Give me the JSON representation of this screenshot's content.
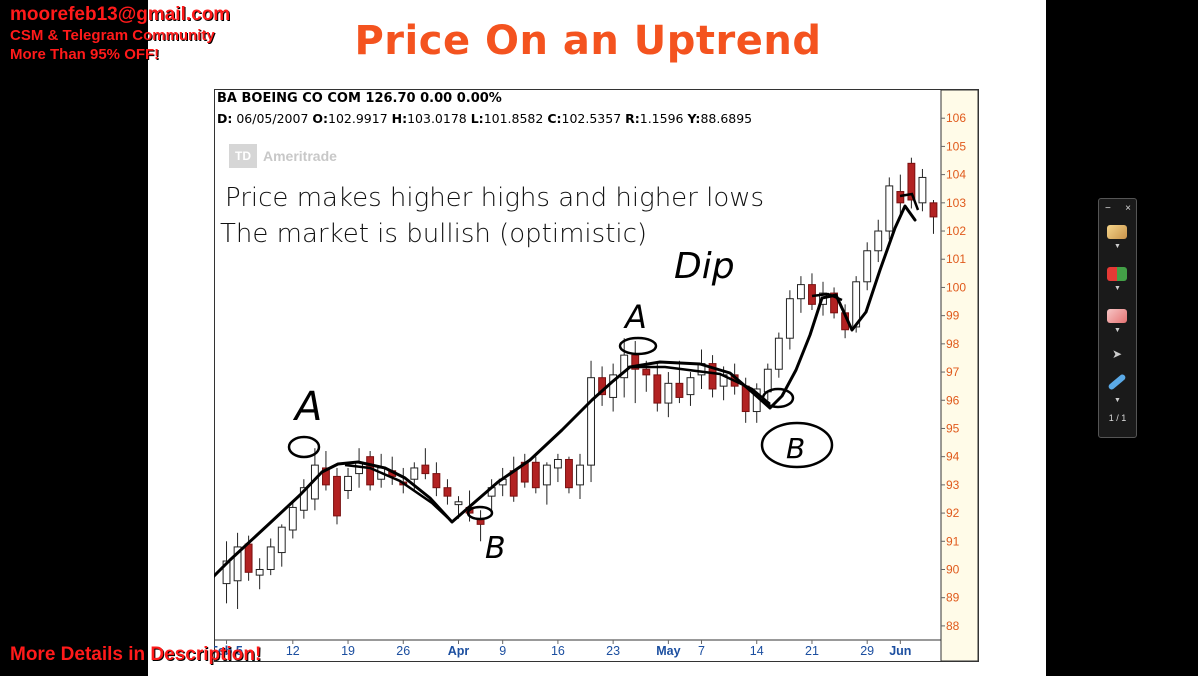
{
  "overlay": {
    "email": "moorefeb13@gmail.com",
    "line1": "CSM & Telegram Community",
    "line2": "More Than 95% OFF!",
    "bottom": "More Details in Description!"
  },
  "slide": {
    "title": "Price On an Uptrend",
    "note1": "Price makes higher highs and higher lows",
    "note2": "The market is bullish (optimistic)"
  },
  "chart_header": {
    "line1": "BA BOEING CO COM   126.70  0.00  0.00%",
    "date_label": "D:",
    "date": " 06/05/2007 ",
    "open_label": "O:",
    "open": "102.9917 ",
    "high_label": "H:",
    "high": "103.0178 ",
    "low_label": "L:",
    "low": "101.8582 ",
    "close_label": "C:",
    "close": "102.5357 ",
    "r_label": "R:",
    "r": "1.1596 ",
    "y_label": "Y:",
    "y": "88.6895"
  },
  "logo": {
    "box": "TD",
    "name": "Ameritrade"
  },
  "annotations": {
    "a1": "A",
    "b1": "B",
    "a2": "A",
    "b2": "B",
    "dip": "Dip"
  },
  "toolbar": {
    "page": "1 / 1",
    "close": "×",
    "minimize": "−"
  },
  "colors": {
    "title": "#f4531f",
    "up_candle": "#ffffff",
    "down_candle": "#b22222",
    "axis_label": "#e05a1c",
    "axis_bg": "#fffbe8"
  },
  "chart_data": {
    "type": "candlestick",
    "title": "BA BOEING CO COM",
    "ylim": [
      87.5,
      107
    ],
    "y_ticks": [
      88,
      89,
      90,
      91,
      92,
      93,
      94,
      95,
      96,
      97,
      98,
      99,
      100,
      101,
      102,
      103,
      104,
      105,
      106
    ],
    "x_ticks": [
      {
        "label": "Feb 5",
        "i": 0
      },
      {
        "label": "12",
        "i": 6
      },
      {
        "label": "19",
        "i": 11
      },
      {
        "label": "26",
        "i": 16
      },
      {
        "label": "Apr",
        "i": 21
      },
      {
        "label": "9",
        "i": 25
      },
      {
        "label": "16",
        "i": 30
      },
      {
        "label": "23",
        "i": 35
      },
      {
        "label": "May",
        "i": 40
      },
      {
        "label": "7",
        "i": 43
      },
      {
        "label": "14",
        "i": 48
      },
      {
        "label": "21",
        "i": 53
      },
      {
        "label": "29",
        "i": 58
      },
      {
        "label": "Jun",
        "i": 61
      }
    ],
    "candles": [
      {
        "o": 89.5,
        "h": 91.0,
        "l": 88.8,
        "c": 90.3
      },
      {
        "o": 89.6,
        "h": 91.3,
        "l": 88.6,
        "c": 90.8
      },
      {
        "o": 90.9,
        "h": 91.2,
        "l": 89.6,
        "c": 89.9
      },
      {
        "o": 89.8,
        "h": 90.4,
        "l": 89.3,
        "c": 90.0
      },
      {
        "o": 90.0,
        "h": 91.1,
        "l": 89.8,
        "c": 90.8
      },
      {
        "o": 90.6,
        "h": 91.6,
        "l": 90.1,
        "c": 91.5
      },
      {
        "o": 91.4,
        "h": 92.4,
        "l": 91.1,
        "c": 92.2
      },
      {
        "o": 92.1,
        "h": 93.2,
        "l": 91.8,
        "c": 92.9
      },
      {
        "o": 92.5,
        "h": 94.3,
        "l": 92.1,
        "c": 93.7
      },
      {
        "o": 93.6,
        "h": 94.2,
        "l": 92.8,
        "c": 93.0
      },
      {
        "o": 93.3,
        "h": 93.6,
        "l": 91.6,
        "c": 91.9
      },
      {
        "o": 92.8,
        "h": 93.6,
        "l": 92.5,
        "c": 93.3
      },
      {
        "o": 93.4,
        "h": 94.3,
        "l": 92.9,
        "c": 93.8
      },
      {
        "o": 94.0,
        "h": 94.2,
        "l": 92.8,
        "c": 93.0
      },
      {
        "o": 93.2,
        "h": 94.1,
        "l": 92.9,
        "c": 93.6
      },
      {
        "o": 93.5,
        "h": 94.0,
        "l": 93.0,
        "c": 93.3
      },
      {
        "o": 93.1,
        "h": 93.6,
        "l": 92.7,
        "c": 93.0
      },
      {
        "o": 93.2,
        "h": 93.8,
        "l": 92.8,
        "c": 93.6
      },
      {
        "o": 93.7,
        "h": 94.3,
        "l": 93.2,
        "c": 93.4
      },
      {
        "o": 93.4,
        "h": 93.8,
        "l": 92.6,
        "c": 92.9
      },
      {
        "o": 92.9,
        "h": 93.2,
        "l": 92.3,
        "c": 92.6
      },
      {
        "o": 92.3,
        "h": 92.6,
        "l": 91.8,
        "c": 92.4
      },
      {
        "o": 92.2,
        "h": 92.8,
        "l": 91.7,
        "c": 92.0
      },
      {
        "o": 91.8,
        "h": 92.1,
        "l": 91.0,
        "c": 91.6
      },
      {
        "o": 92.6,
        "h": 93.2,
        "l": 92.1,
        "c": 92.9
      },
      {
        "o": 93.0,
        "h": 93.6,
        "l": 92.6,
        "c": 93.2
      },
      {
        "o": 93.5,
        "h": 94.0,
        "l": 92.4,
        "c": 92.6
      },
      {
        "o": 93.8,
        "h": 94.1,
        "l": 92.9,
        "c": 93.1
      },
      {
        "o": 93.8,
        "h": 94.0,
        "l": 92.7,
        "c": 92.9
      },
      {
        "o": 93.0,
        "h": 93.8,
        "l": 92.3,
        "c": 93.7
      },
      {
        "o": 93.6,
        "h": 94.1,
        "l": 93.1,
        "c": 93.9
      },
      {
        "o": 93.9,
        "h": 94.0,
        "l": 92.7,
        "c": 92.9
      },
      {
        "o": 93.0,
        "h": 94.1,
        "l": 92.5,
        "c": 93.7
      },
      {
        "o": 93.7,
        "h": 97.4,
        "l": 93.1,
        "c": 96.8
      },
      {
        "o": 96.8,
        "h": 97.2,
        "l": 95.8,
        "c": 96.2
      },
      {
        "o": 96.1,
        "h": 97.3,
        "l": 95.6,
        "c": 96.9
      },
      {
        "o": 96.8,
        "h": 98.2,
        "l": 96.1,
        "c": 97.6
      },
      {
        "o": 97.6,
        "h": 98.1,
        "l": 95.9,
        "c": 97.1
      },
      {
        "o": 97.1,
        "h": 97.4,
        "l": 96.3,
        "c": 96.9
      },
      {
        "o": 96.9,
        "h": 97.3,
        "l": 95.6,
        "c": 95.9
      },
      {
        "o": 95.9,
        "h": 97.0,
        "l": 95.4,
        "c": 96.6
      },
      {
        "o": 96.6,
        "h": 97.4,
        "l": 95.9,
        "c": 96.1
      },
      {
        "o": 96.2,
        "h": 97.0,
        "l": 95.8,
        "c": 96.8
      },
      {
        "o": 96.9,
        "h": 97.8,
        "l": 96.4,
        "c": 97.3
      },
      {
        "o": 97.3,
        "h": 97.6,
        "l": 96.1,
        "c": 96.4
      },
      {
        "o": 96.5,
        "h": 97.2,
        "l": 96.0,
        "c": 96.9
      },
      {
        "o": 96.9,
        "h": 97.3,
        "l": 96.2,
        "c": 96.5
      },
      {
        "o": 96.5,
        "h": 96.8,
        "l": 95.2,
        "c": 95.6
      },
      {
        "o": 95.6,
        "h": 96.6,
        "l": 95.2,
        "c": 96.4
      },
      {
        "o": 96.3,
        "h": 97.3,
        "l": 96.0,
        "c": 97.1
      },
      {
        "o": 97.1,
        "h": 98.4,
        "l": 96.8,
        "c": 98.2
      },
      {
        "o": 98.2,
        "h": 99.9,
        "l": 97.8,
        "c": 99.6
      },
      {
        "o": 99.6,
        "h": 100.4,
        "l": 99.1,
        "c": 100.1
      },
      {
        "o": 100.1,
        "h": 100.5,
        "l": 99.2,
        "c": 99.4
      },
      {
        "o": 99.4,
        "h": 100.2,
        "l": 99.0,
        "c": 99.8
      },
      {
        "o": 99.8,
        "h": 100.0,
        "l": 98.9,
        "c": 99.1
      },
      {
        "o": 99.1,
        "h": 99.4,
        "l": 98.2,
        "c": 98.5
      },
      {
        "o": 98.6,
        "h": 100.4,
        "l": 98.4,
        "c": 100.2
      },
      {
        "o": 100.2,
        "h": 101.6,
        "l": 99.9,
        "c": 101.3
      },
      {
        "o": 101.3,
        "h": 102.4,
        "l": 100.9,
        "c": 102.0
      },
      {
        "o": 102.0,
        "h": 103.9,
        "l": 101.7,
        "c": 103.6
      },
      {
        "o": 103.4,
        "h": 104.0,
        "l": 102.6,
        "c": 103.0
      },
      {
        "o": 104.4,
        "h": 104.6,
        "l": 102.8,
        "c": 103.1
      },
      {
        "o": 103.0,
        "h": 104.2,
        "l": 102.7,
        "c": 103.9
      },
      {
        "o": 103.0,
        "h": 103.1,
        "l": 101.9,
        "c": 102.5
      }
    ]
  }
}
